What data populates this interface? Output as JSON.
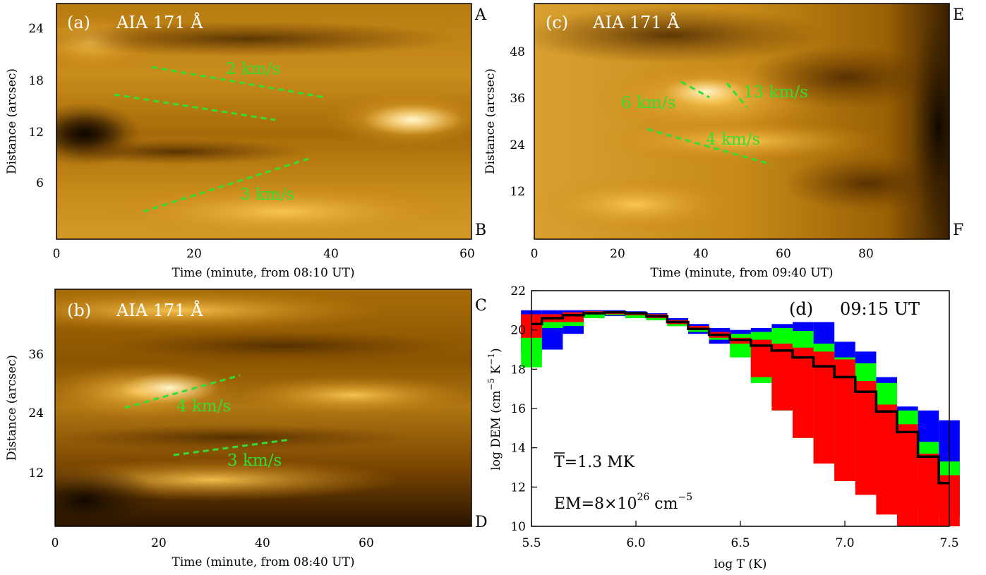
{
  "panels": [
    {
      "id": "a",
      "label": "(a)",
      "instrument": "AIA 171 Å",
      "x_label": "Time (minute, from 08:10 UT)",
      "y_label": "Distance (arcsec)",
      "x_ticks": [
        "0",
        "20",
        "40",
        "60"
      ],
      "y_ticks": [
        "6",
        "12",
        "18",
        "24"
      ],
      "edge_top": "A",
      "edge_bottom": "B",
      "speeds": [
        "2 km/s",
        "3 km/s"
      ]
    },
    {
      "id": "b",
      "label": "(b)",
      "instrument": "AIA 171 Å",
      "x_label": "Time (minute, from 08:40 UT)",
      "y_label": "Distance (arcsec)",
      "x_ticks": [
        "0",
        "20",
        "40",
        "60"
      ],
      "y_ticks": [
        "12",
        "24",
        "36"
      ],
      "edge_top": "C",
      "edge_bottom": "D",
      "speeds": [
        "4 km/s",
        "3 km/s"
      ]
    },
    {
      "id": "c",
      "label": "(c)",
      "instrument": "AIA 171 Å",
      "x_label": "Time (minute, from 09:40 UT)",
      "y_label": "Distance (arcsec)",
      "x_ticks": [
        "0",
        "20",
        "40",
        "60",
        "80"
      ],
      "y_ticks": [
        "12",
        "24",
        "36",
        "48"
      ],
      "edge_top": "E",
      "edge_bottom": "F",
      "speeds": [
        "6 km/s",
        "13 km/s",
        "4 km/s"
      ]
    }
  ],
  "dem_panel": {
    "label": "(d)",
    "time": "09:15 UT",
    "x_label": "log T (K)",
    "y_label_prefix": "log DEM (cm",
    "y_label_exp1": "−5",
    "y_label_mid": " K",
    "y_label_exp2": "−1",
    "y_label_suffix": ")",
    "mean_temp": "T=1.3  MK",
    "mean_temp_bar": "T",
    "em_prefix": "EM=8×10",
    "em_exp": "26",
    "em_unit": " cm",
    "em_unit_exp": "−5",
    "x_ticks": [
      "5.5",
      "6.0",
      "6.5",
      "7.0",
      "7.5"
    ],
    "y_ticks": [
      "10",
      "12",
      "14",
      "16",
      "18",
      "20",
      "22"
    ]
  },
  "chart_data": {
    "type": "bar",
    "xlim": [
      5.5,
      7.5
    ],
    "ylim": [
      10,
      22
    ],
    "x_tick_values": [
      5.5,
      6.0,
      6.5,
      7.0,
      7.5
    ],
    "y_tick_values": [
      10,
      12,
      14,
      16,
      18,
      20,
      22
    ],
    "logT": [
      5.5,
      5.6,
      5.7,
      5.8,
      5.9,
      6.0,
      6.1,
      6.2,
      6.3,
      6.4,
      6.5,
      6.6,
      6.7,
      6.8,
      6.9,
      7.0,
      7.1,
      7.2,
      7.3,
      7.4,
      7.5
    ],
    "best_fit": [
      20.3,
      20.6,
      20.75,
      20.85,
      20.9,
      20.85,
      20.7,
      20.4,
      20.05,
      19.75,
      19.5,
      19.2,
      18.95,
      18.6,
      18.15,
      17.6,
      16.85,
      15.85,
      14.8,
      13.55,
      12.2
    ],
    "uncertainty_bands": [
      {
        "color": "#0000ff",
        "ranges": [
          [
            18.8,
            21.0
          ],
          [
            19.0,
            21.0
          ],
          [
            19.8,
            21.0
          ],
          [
            20.6,
            21.0
          ],
          [
            20.7,
            21.0
          ],
          [
            20.6,
            20.95
          ],
          [
            20.5,
            20.85
          ],
          [
            20.2,
            20.6
          ],
          [
            19.8,
            20.3
          ],
          [
            19.3,
            20.1
          ],
          [
            19.1,
            20.0
          ],
          [
            17.4,
            20.1
          ],
          [
            16.2,
            20.3
          ],
          [
            15.1,
            20.4
          ],
          [
            13.8,
            20.4
          ],
          [
            12.6,
            19.4
          ],
          [
            11.9,
            18.9
          ],
          [
            11.6,
            17.6
          ],
          [
            11.3,
            16.1
          ],
          [
            11.0,
            15.9
          ],
          [
            10.5,
            15.4
          ]
        ]
      },
      {
        "color": "#00ff00",
        "ranges": [
          [
            18.1,
            20.6
          ],
          [
            20.1,
            20.8
          ],
          [
            20.2,
            20.9
          ],
          [
            20.6,
            20.95
          ],
          [
            20.75,
            20.95
          ],
          [
            20.6,
            20.9
          ],
          [
            20.5,
            20.8
          ],
          [
            20.2,
            20.5
          ],
          [
            19.9,
            20.2
          ],
          [
            19.5,
            19.9
          ],
          [
            18.6,
            19.8
          ],
          [
            17.3,
            19.9
          ],
          [
            15.9,
            20.1
          ],
          [
            14.5,
            19.95
          ],
          [
            13.3,
            19.3
          ],
          [
            12.3,
            18.6
          ],
          [
            12.8,
            18.3
          ],
          [
            11.8,
            17.3
          ],
          [
            11.4,
            15.9
          ],
          [
            12.3,
            14.3
          ],
          [
            11.2,
            13.3
          ]
        ]
      },
      {
        "color": "#ff0000",
        "ranges": [
          [
            19.6,
            20.8
          ],
          [
            20.4,
            20.8
          ],
          [
            20.4,
            20.9
          ],
          [
            20.8,
            20.95
          ],
          [
            20.8,
            20.95
          ],
          [
            20.75,
            20.9
          ],
          [
            20.6,
            20.8
          ],
          [
            20.3,
            20.5
          ],
          [
            20.0,
            20.2
          ],
          [
            19.6,
            19.9
          ],
          [
            19.3,
            19.6
          ],
          [
            17.6,
            19.5
          ],
          [
            15.9,
            19.3
          ],
          [
            14.5,
            19.1
          ],
          [
            13.2,
            18.9
          ],
          [
            12.3,
            18.5
          ],
          [
            11.6,
            17.4
          ],
          [
            10.6,
            16.2
          ],
          [
            9.9,
            15.2
          ],
          [
            9.9,
            13.7
          ],
          [
            9.9,
            12.6
          ]
        ]
      }
    ]
  }
}
